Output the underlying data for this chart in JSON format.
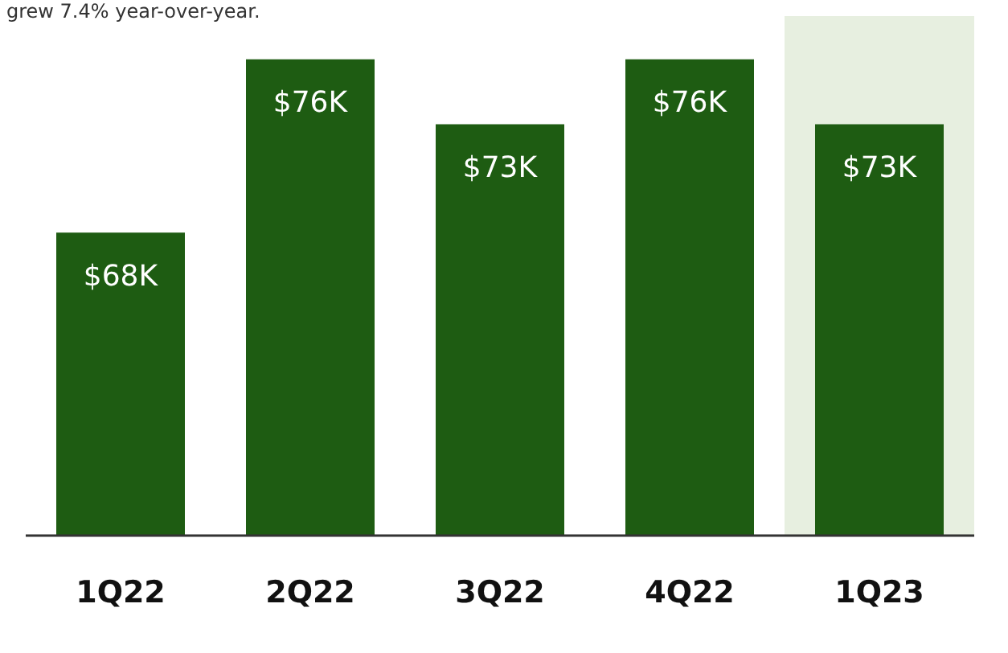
{
  "chart_data": {
    "type": "bar",
    "subtitle": "grew 7.4% year-over-year.",
    "categories": [
      "1Q22",
      "2Q22",
      "3Q22",
      "4Q22",
      "1Q23"
    ],
    "values": [
      68,
      76,
      73,
      76,
      73
    ],
    "value_labels": [
      "$68K",
      "$76K",
      "$73K",
      "$76K",
      "$73K"
    ],
    "color": "#1e5c12",
    "ylim": [
      54,
      78
    ],
    "tick_labels": "x",
    "grid": false,
    "legend": false,
    "bands": [
      {
        "axis": "x",
        "from": "1Q23",
        "to": "1Q23",
        "color": "#e7efe0"
      }
    ]
  }
}
